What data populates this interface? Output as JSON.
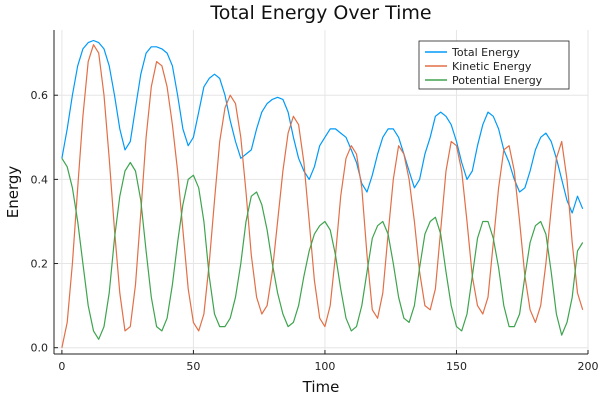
{
  "chart_data": {
    "type": "line",
    "title": "Total Energy Over Time",
    "xlabel": "Time",
    "ylabel": "Energy",
    "xlim": [
      -3,
      200
    ],
    "ylim": [
      -0.015,
      0.755
    ],
    "xticks": [
      0,
      50,
      100,
      150,
      200
    ],
    "yticks": [
      0.0,
      0.2,
      0.4,
      0.6
    ],
    "xtick_labels": [
      "0",
      "50",
      "100",
      "150",
      "200"
    ],
    "ytick_labels": [
      "0.0",
      "0.2",
      "0.4",
      "0.6"
    ],
    "grid": true,
    "legend_position": "top-right",
    "x": [
      0,
      2,
      4,
      6,
      8,
      10,
      12,
      14,
      16,
      18,
      20,
      22,
      24,
      26,
      28,
      30,
      32,
      34,
      36,
      38,
      40,
      42,
      44,
      46,
      48,
      50,
      52,
      54,
      56,
      58,
      60,
      62,
      64,
      66,
      68,
      70,
      72,
      74,
      76,
      78,
      80,
      82,
      84,
      86,
      88,
      90,
      92,
      94,
      96,
      98,
      100,
      102,
      104,
      106,
      108,
      110,
      112,
      114,
      116,
      118,
      120,
      122,
      124,
      126,
      128,
      130,
      132,
      134,
      136,
      138,
      140,
      142,
      144,
      146,
      148,
      150,
      152,
      154,
      156,
      158,
      160,
      162,
      164,
      166,
      168,
      170,
      172,
      174,
      176,
      178,
      180,
      182,
      184,
      186,
      188,
      190,
      192,
      194,
      196,
      198
    ],
    "series": [
      {
        "name": "Total Energy",
        "color": "#009af9",
        "values": [
          0.45,
          0.52,
          0.6,
          0.67,
          0.71,
          0.725,
          0.73,
          0.725,
          0.71,
          0.67,
          0.6,
          0.52,
          0.47,
          0.49,
          0.57,
          0.65,
          0.7,
          0.715,
          0.715,
          0.71,
          0.7,
          0.67,
          0.6,
          0.52,
          0.48,
          0.5,
          0.56,
          0.62,
          0.64,
          0.65,
          0.64,
          0.6,
          0.54,
          0.49,
          0.45,
          0.46,
          0.47,
          0.52,
          0.56,
          0.58,
          0.59,
          0.595,
          0.59,
          0.56,
          0.5,
          0.45,
          0.42,
          0.4,
          0.43,
          0.48,
          0.5,
          0.52,
          0.52,
          0.51,
          0.5,
          0.47,
          0.44,
          0.39,
          0.37,
          0.41,
          0.46,
          0.5,
          0.52,
          0.52,
          0.5,
          0.46,
          0.42,
          0.38,
          0.4,
          0.46,
          0.5,
          0.55,
          0.56,
          0.55,
          0.53,
          0.49,
          0.44,
          0.4,
          0.42,
          0.48,
          0.53,
          0.56,
          0.55,
          0.52,
          0.47,
          0.44,
          0.4,
          0.37,
          0.38,
          0.42,
          0.47,
          0.5,
          0.51,
          0.49,
          0.45,
          0.4,
          0.35,
          0.32,
          0.36,
          0.33
        ]
      },
      {
        "name": "Kinetic Energy",
        "color": "#e26f46",
        "values": [
          0.0,
          0.06,
          0.2,
          0.38,
          0.55,
          0.68,
          0.72,
          0.7,
          0.6,
          0.45,
          0.28,
          0.13,
          0.04,
          0.05,
          0.15,
          0.32,
          0.5,
          0.62,
          0.68,
          0.67,
          0.62,
          0.53,
          0.42,
          0.28,
          0.14,
          0.06,
          0.04,
          0.08,
          0.2,
          0.35,
          0.49,
          0.57,
          0.6,
          0.58,
          0.5,
          0.37,
          0.22,
          0.12,
          0.08,
          0.1,
          0.18,
          0.3,
          0.42,
          0.51,
          0.55,
          0.53,
          0.44,
          0.3,
          0.16,
          0.07,
          0.05,
          0.1,
          0.22,
          0.36,
          0.45,
          0.48,
          0.46,
          0.38,
          0.22,
          0.09,
          0.07,
          0.13,
          0.27,
          0.4,
          0.48,
          0.46,
          0.4,
          0.3,
          0.18,
          0.1,
          0.09,
          0.14,
          0.28,
          0.42,
          0.49,
          0.48,
          0.42,
          0.3,
          0.17,
          0.1,
          0.08,
          0.12,
          0.25,
          0.38,
          0.47,
          0.48,
          0.42,
          0.3,
          0.17,
          0.09,
          0.06,
          0.1,
          0.2,
          0.33,
          0.45,
          0.49,
          0.4,
          0.25,
          0.13,
          0.09
        ]
      },
      {
        "name": "Potential Energy",
        "color": "#3ea44e",
        "values": [
          0.45,
          0.43,
          0.38,
          0.3,
          0.2,
          0.1,
          0.04,
          0.02,
          0.05,
          0.13,
          0.26,
          0.36,
          0.42,
          0.44,
          0.42,
          0.35,
          0.23,
          0.12,
          0.05,
          0.04,
          0.07,
          0.15,
          0.25,
          0.34,
          0.4,
          0.41,
          0.38,
          0.3,
          0.17,
          0.08,
          0.05,
          0.05,
          0.07,
          0.12,
          0.2,
          0.3,
          0.36,
          0.37,
          0.34,
          0.28,
          0.2,
          0.13,
          0.08,
          0.05,
          0.06,
          0.1,
          0.17,
          0.23,
          0.27,
          0.29,
          0.3,
          0.28,
          0.22,
          0.14,
          0.07,
          0.04,
          0.05,
          0.1,
          0.18,
          0.26,
          0.29,
          0.3,
          0.27,
          0.2,
          0.12,
          0.07,
          0.06,
          0.1,
          0.19,
          0.27,
          0.3,
          0.31,
          0.27,
          0.18,
          0.1,
          0.05,
          0.04,
          0.08,
          0.17,
          0.26,
          0.3,
          0.3,
          0.26,
          0.19,
          0.1,
          0.05,
          0.05,
          0.08,
          0.17,
          0.25,
          0.29,
          0.3,
          0.27,
          0.18,
          0.08,
          0.03,
          0.06,
          0.12,
          0.23,
          0.25
        ]
      }
    ]
  }
}
